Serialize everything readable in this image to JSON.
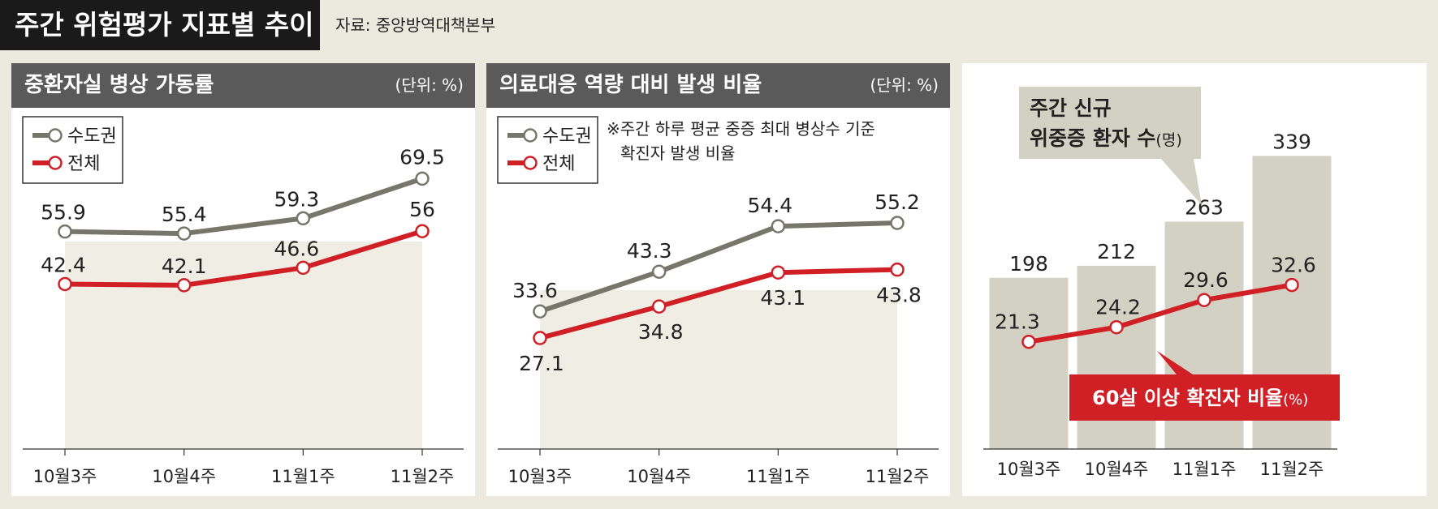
{
  "header": {
    "title": "주간 위험평가 지표별 추이",
    "source": "자료: 중앙방역대책본부"
  },
  "panels": [
    {
      "title": "중환자실 병상 가동률",
      "unit": "(단위: %)"
    },
    {
      "title": "의료대응 역량 대비 발생 비율",
      "unit": "(단위: %)",
      "note_line1": "※주간 하루 평균 중증 최대 병상수 기준",
      "note_line2": "확진자 발생 비율"
    },
    {
      "bar_label_line1": "주간 신규",
      "bar_label_line2": "위중증 환자 수",
      "bar_label_unit": "(명)",
      "line_label": "60살 이상 확진자 비율",
      "line_label_unit": "(%)"
    }
  ],
  "colors": {
    "capital": "#77766a",
    "total": "#d11f26",
    "bar": "#d3d1c3",
    "plot_bg": "#f0eee4"
  },
  "chart_data": [
    {
      "type": "line",
      "title": "중환자실 병상 가동률",
      "unit": "(단위: %)",
      "categories": [
        "10월3주",
        "10월4주",
        "11월1주",
        "11월2주"
      ],
      "series": [
        {
          "name": "수도권",
          "values": [
            55.9,
            55.4,
            59.3,
            69.5
          ]
        },
        {
          "name": "전체",
          "values": [
            42.4,
            42.1,
            46.6,
            56
          ]
        }
      ],
      "ylim": [
        0,
        85
      ],
      "legend": "top-left"
    },
    {
      "type": "line",
      "title": "의료대응 역량 대비 발생 비율",
      "unit": "(단위: %)",
      "categories": [
        "10월3주",
        "10월4주",
        "11월1주",
        "11월2주"
      ],
      "series": [
        {
          "name": "수도권",
          "values": [
            33.6,
            43.3,
            54.4,
            55.2
          ]
        },
        {
          "name": "전체",
          "values": [
            27.1,
            34.8,
            43.1,
            43.8
          ]
        }
      ],
      "ylim": [
        0,
        75
      ],
      "legend": "top-left"
    },
    {
      "type": "bar",
      "categories": [
        "10월3주",
        "10월4주",
        "11월1주",
        "11월2주"
      ],
      "series": [
        {
          "name": "주간 신규 위중증 환자 수(명)",
          "type": "bar",
          "values": [
            198,
            212,
            263,
            339
          ]
        },
        {
          "name": "60살 이상 확진자 비율(%)",
          "type": "line",
          "values": [
            21.3,
            24.2,
            29.6,
            32.6
          ]
        }
      ],
      "ylim_bar": [
        0,
        390
      ],
      "ylim_line": [
        0,
        67
      ]
    }
  ]
}
